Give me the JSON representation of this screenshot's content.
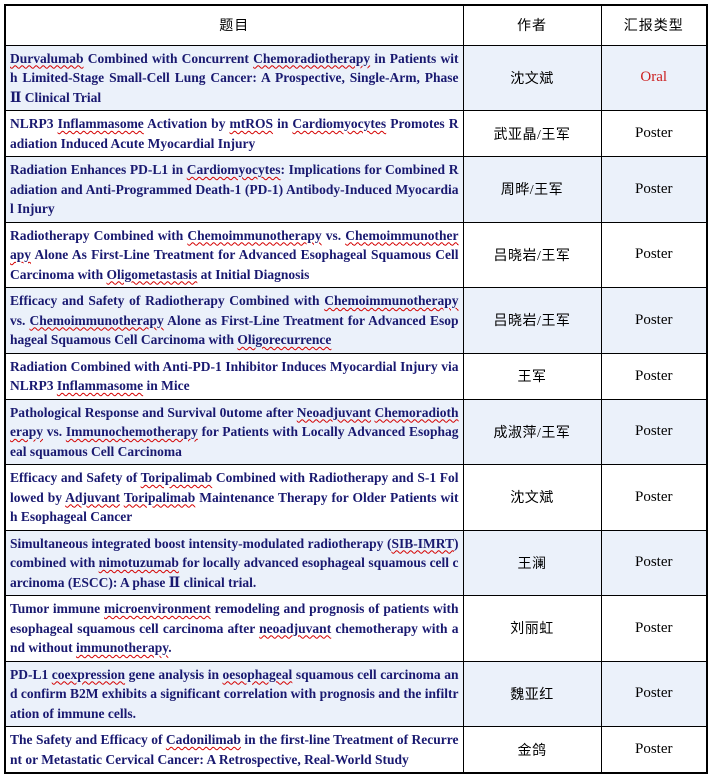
{
  "table": {
    "headers": [
      {
        "label": "题目"
      },
      {
        "label": "作者"
      },
      {
        "label": "汇报类型"
      }
    ],
    "rows": [
      {
        "title_segments": [
          {
            "t": "Durvalumab",
            "u": true
          },
          {
            "t": " Combined with Concurrent ",
            "u": false
          },
          {
            "t": "Chemoradiotherapy",
            "u": true
          },
          {
            "t": " in Patients with Limited-Stage Small-Cell Lung Cancer: A Prospective, Single-Arm, Phase Ⅱ Clinical Trial",
            "u": false
          }
        ],
        "author": "沈文斌",
        "type": "Oral",
        "oral": true
      },
      {
        "title_segments": [
          {
            "t": "NLRP3 ",
            "u": false
          },
          {
            "t": "Inflammasome",
            "u": true
          },
          {
            "t": " Activation by ",
            "u": false
          },
          {
            "t": "mtROS",
            "u": true
          },
          {
            "t": " in ",
            "u": false
          },
          {
            "t": "Cardiomyocytes",
            "u": true
          },
          {
            "t": " Promotes Radiation Induced Acute Myocardial Injury",
            "u": false
          }
        ],
        "author": "武亚晶/王军",
        "type": "Poster",
        "oral": false
      },
      {
        "title_segments": [
          {
            "t": "Radiation Enhances PD-L1 in ",
            "u": false
          },
          {
            "t": "Cardiomyocytes",
            "u": true
          },
          {
            "t": ": Implications for Combined Radiation and Anti-Programmed Death-1 (PD-1) Antibody-Induced Myocardial Injury",
            "u": false
          }
        ],
        "author": "周晔/王军",
        "type": "Poster",
        "oral": false
      },
      {
        "title_segments": [
          {
            "t": "Radiotherapy Combined with ",
            "u": false
          },
          {
            "t": "Chemoimmunotherapy",
            "u": true
          },
          {
            "t": " vs. ",
            "u": false
          },
          {
            "t": "Chemoimmunotherapy",
            "u": true
          },
          {
            "t": " Alone As First-Line Treatment for Advanced Esophageal Squamous Cell Carcinoma with ",
            "u": false
          },
          {
            "t": "Oligometastasis",
            "u": true
          },
          {
            "t": " at Initial Diagnosis",
            "u": false
          }
        ],
        "author": "吕晓岩/王军",
        "type": "Poster",
        "oral": false
      },
      {
        "title_segments": [
          {
            "t": "Efficacy and Safety of Radiotherapy Combined with ",
            "u": false
          },
          {
            "t": "Chemoimmunotherapy",
            "u": true
          },
          {
            "t": " vs. ",
            "u": false
          },
          {
            "t": "Chemoimmunotherapy",
            "u": true
          },
          {
            "t": " Alone as First-Line Treatment for Advanced Esophageal Squamous Cell Carcinoma with ",
            "u": false
          },
          {
            "t": "Oligorecurrence",
            "u": true
          }
        ],
        "author": "吕晓岩/王军",
        "type": "Poster",
        "oral": false
      },
      {
        "title_segments": [
          {
            "t": "Radiation Combined with Anti-PD-1 Inhibitor Induces Myocardial Injury via NLRP3 ",
            "u": false
          },
          {
            "t": "Inflammasome",
            "u": true
          },
          {
            "t": " in Mice",
            "u": false
          }
        ],
        "author": "王军",
        "type": "Poster",
        "oral": false
      },
      {
        "title_segments": [
          {
            "t": "Pathological Response and Survival 0utome after ",
            "u": false
          },
          {
            "t": "Neoadjuvant",
            "u": true
          },
          {
            "t": " ",
            "u": false
          },
          {
            "t": "Chemoradiotherapy",
            "u": true
          },
          {
            "t": " vs. ",
            "u": false
          },
          {
            "t": "Immunochemotherapy",
            "u": true
          },
          {
            "t": " for Patients with Locally Advanced Esophageal squamous Cell Carcinoma",
            "u": false
          }
        ],
        "author": "成淑萍/王军",
        "type": "Poster",
        "oral": false
      },
      {
        "title_segments": [
          {
            "t": "Efficacy and Safety of ",
            "u": false
          },
          {
            "t": "Toripalimab",
            "u": true
          },
          {
            "t": " Combined with Radiotherapy and S-1 Followed by ",
            "u": false
          },
          {
            "t": "Adjuvant",
            "u": true
          },
          {
            "t": " ",
            "u": false
          },
          {
            "t": "Toripalimab",
            "u": true
          },
          {
            "t": " Maintenance Therapy for Older Patients with Esophageal Cancer",
            "u": false
          }
        ],
        "author": "沈文斌",
        "type": "Poster",
        "oral": false
      },
      {
        "title_segments": [
          {
            "t": "Simultaneous integrated boost intensity-modulated radiotherapy (",
            "u": false
          },
          {
            "t": "SIB-IMRT",
            "u": true
          },
          {
            "t": ") combined with ",
            "u": false
          },
          {
            "t": "nimotuzumab",
            "u": true
          },
          {
            "t": " for locally advanced esophageal squamous cell carcinoma (ESCC): A phase Ⅱ clinical trial.",
            "u": false
          }
        ],
        "author": "王澜",
        "type": "Poster",
        "oral": false
      },
      {
        "title_segments": [
          {
            "t": "Tumor immune ",
            "u": false
          },
          {
            "t": "microenvironment",
            "u": true
          },
          {
            "t": " remodeling and prognosis of patients with esophageal squamous cell carcinoma after ",
            "u": false
          },
          {
            "t": "neoadjuvant",
            "u": true
          },
          {
            "t": " chemotherapy with and without ",
            "u": false
          },
          {
            "t": "immunotherapy",
            "u": true
          },
          {
            "t": ".",
            "u": false
          }
        ],
        "author": "刘丽虹",
        "type": "Poster",
        "oral": false
      },
      {
        "title_segments": [
          {
            "t": "PD-L1 ",
            "u": false
          },
          {
            "t": "coexpression",
            "u": true
          },
          {
            "t": " gene analysis in ",
            "u": false
          },
          {
            "t": "oesophageal",
            "u": true
          },
          {
            "t": " squamous cell carcinoma and confirm B2M exhibits a significant correlation with prognosis and the infiltration of immune cells.",
            "u": false
          }
        ],
        "author": "魏亚红",
        "type": "Poster",
        "oral": false
      },
      {
        "title_segments": [
          {
            "t": "The Safety and Efficacy of ",
            "u": false
          },
          {
            "t": "Cadonilimab",
            "u": true
          },
          {
            "t": " in the first-line Treatment of Recurrent or Metastatic Cervical Cancer: A Retrospective, Real-World Study",
            "u": false
          }
        ],
        "author": "金鸽",
        "type": "Poster",
        "oral": false
      }
    ]
  },
  "colors": {
    "title_text": "#191970",
    "oral_red": "#cc2020",
    "squiggle_red": "#d40000",
    "row_stripe": "#ebf1fa",
    "border": "#000000"
  }
}
